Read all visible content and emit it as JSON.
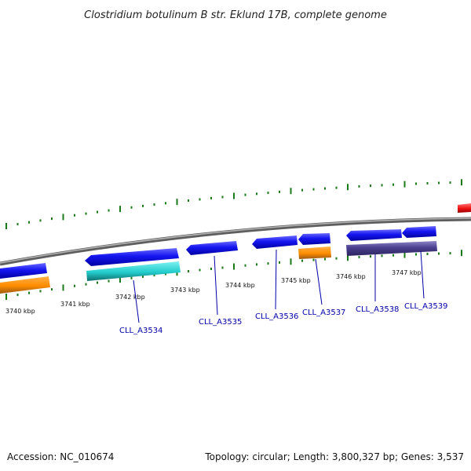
{
  "title": "Clostridium botulinum B str. Eklund 17B, complete genome",
  "footer": {
    "accession": "Accession: NC_010674",
    "summary": "Topology: circular; Length: 3,800,327 bp; Genes: 3,537"
  },
  "axis": {
    "unit": "kbp",
    "ticks": [
      "3740 kbp",
      "3741 kbp",
      "3742 kbp",
      "3743 kbp",
      "3744 kbp",
      "3745 kbp",
      "3746 kbp",
      "3747 kbp"
    ]
  },
  "gene_labels": [
    "CLL_A3534",
    "CLL_A3535",
    "CLL_A3536",
    "CLL_A3537",
    "CLL_A3538",
    "CLL_A3539"
  ],
  "colors": {
    "backbone": "#8a8a8a",
    "cds": "#1010e6",
    "cds_alt": "#4a3f8f",
    "orange": "#ff8c00",
    "cyan": "#22cccc",
    "red": "#ee1111",
    "tick": "#1a7a1a",
    "label": "#0000aa"
  }
}
